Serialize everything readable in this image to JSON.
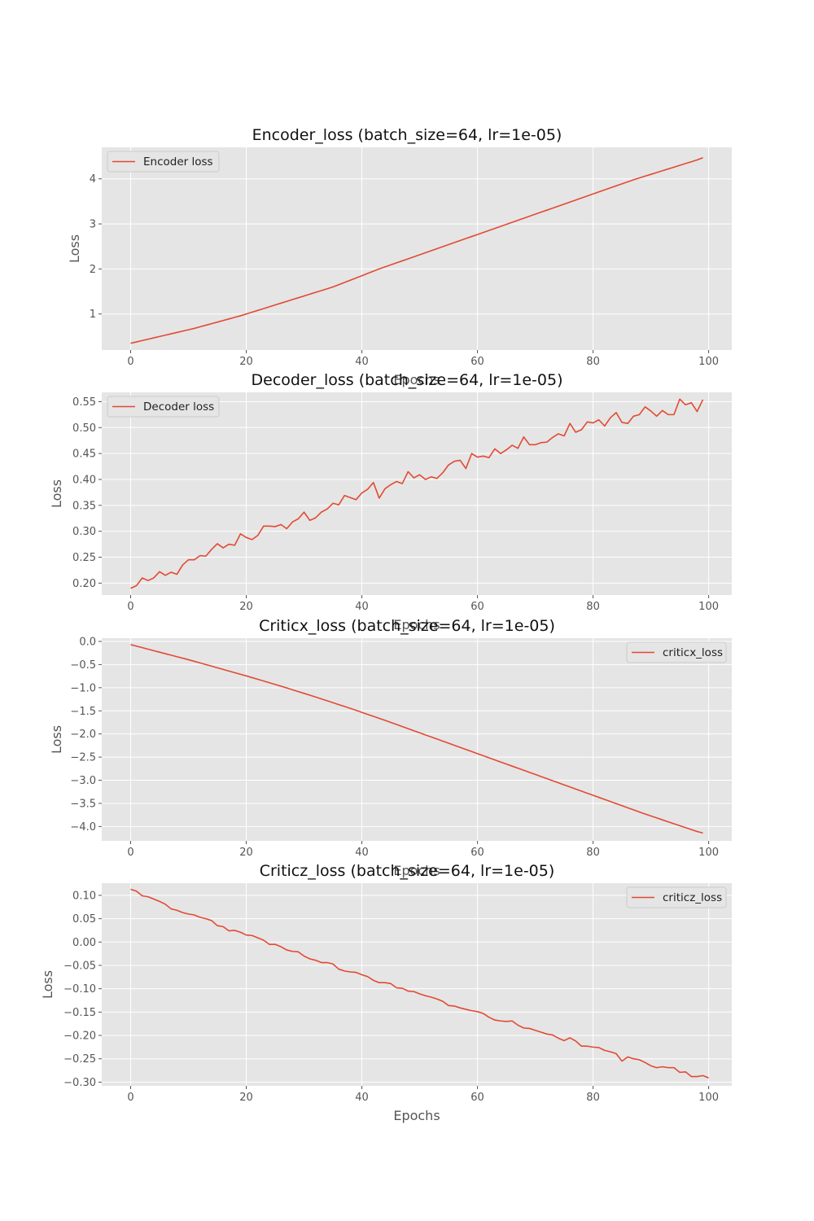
{
  "chart_data": [
    {
      "type": "line",
      "title": "Encoder_loss (batch_size=64, lr=1e-05)",
      "xlabel": "Epochs",
      "ylabel": "Loss",
      "xlim": [
        -5,
        104
      ],
      "ylim": [
        0.2,
        4.7
      ],
      "xticks": [
        0,
        20,
        40,
        60,
        80,
        100
      ],
      "yticks": [
        1,
        2,
        3,
        4
      ],
      "ytick_labels": [
        "1",
        "2",
        "3",
        "4"
      ],
      "grid": true,
      "legend_position": "upper left",
      "series": [
        {
          "name": "Encoder loss",
          "color": "#E24A33",
          "x_start": 0,
          "values": [
            0.35,
            0.38,
            0.41,
            0.44,
            0.47,
            0.5,
            0.53,
            0.56,
            0.59,
            0.62,
            0.65,
            0.68,
            0.715,
            0.75,
            0.785,
            0.82,
            0.855,
            0.89,
            0.925,
            0.96,
            1.0,
            1.04,
            1.08,
            1.12,
            1.16,
            1.2,
            1.24,
            1.28,
            1.32,
            1.36,
            1.4,
            1.44,
            1.48,
            1.52,
            1.56,
            1.6,
            1.65,
            1.7,
            1.75,
            1.8,
            1.85,
            1.9,
            1.95,
            2.0,
            2.045,
            2.09,
            2.135,
            2.18,
            2.225,
            2.27,
            2.315,
            2.36,
            2.405,
            2.45,
            2.495,
            2.54,
            2.585,
            2.63,
            2.675,
            2.72,
            2.765,
            2.81,
            2.855,
            2.9,
            2.945,
            2.99,
            3.035,
            3.08,
            3.125,
            3.17,
            3.215,
            3.26,
            3.305,
            3.35,
            3.395,
            3.44,
            3.485,
            3.53,
            3.575,
            3.62,
            3.665,
            3.71,
            3.755,
            3.8,
            3.845,
            3.89,
            3.935,
            3.98,
            4.02,
            4.06,
            4.1,
            4.14,
            4.18,
            4.22,
            4.26,
            4.3,
            4.34,
            4.38,
            4.42,
            4.47
          ]
        }
      ]
    },
    {
      "type": "line",
      "title": "Decoder_loss (batch_size=64, lr=1e-05)",
      "xlabel": "Epochs",
      "ylabel": "Loss",
      "xlim": [
        -5,
        104
      ],
      "ylim": [
        0.177,
        0.568
      ],
      "xticks": [
        0,
        20,
        40,
        60,
        80,
        100
      ],
      "yticks": [
        0.2,
        0.25,
        0.3,
        0.35,
        0.4,
        0.45,
        0.5,
        0.55
      ],
      "ytick_labels": [
        "0.20",
        "0.25",
        "0.30",
        "0.35",
        "0.40",
        "0.45",
        "0.50",
        "0.55"
      ],
      "grid": true,
      "legend_position": "upper left",
      "series": [
        {
          "name": "Decoder loss",
          "color": "#E24A33",
          "x_start": 0,
          "values": [
            0.19,
            0.195,
            0.21,
            0.205,
            0.21,
            0.222,
            0.215,
            0.221,
            0.217,
            0.235,
            0.245,
            0.245,
            0.253,
            0.252,
            0.265,
            0.276,
            0.268,
            0.275,
            0.273,
            0.295,
            0.288,
            0.284,
            0.292,
            0.31,
            0.31,
            0.309,
            0.313,
            0.305,
            0.318,
            0.324,
            0.337,
            0.321,
            0.326,
            0.337,
            0.343,
            0.354,
            0.351,
            0.369,
            0.365,
            0.361,
            0.374,
            0.381,
            0.394,
            0.364,
            0.382,
            0.39,
            0.396,
            0.392,
            0.415,
            0.403,
            0.409,
            0.4,
            0.405,
            0.402,
            0.413,
            0.428,
            0.435,
            0.437,
            0.421,
            0.45,
            0.443,
            0.445,
            0.442,
            0.459,
            0.45,
            0.457,
            0.466,
            0.46,
            0.482,
            0.467,
            0.467,
            0.471,
            0.472,
            0.481,
            0.488,
            0.484,
            0.508,
            0.491,
            0.496,
            0.511,
            0.509,
            0.515,
            0.503,
            0.519,
            0.529,
            0.51,
            0.508,
            0.522,
            0.525,
            0.54,
            0.532,
            0.522,
            0.533,
            0.525,
            0.525,
            0.555,
            0.544,
            0.548,
            0.531,
            0.554
          ]
        }
      ]
    },
    {
      "type": "line",
      "title": "Criticx_loss (batch_size=64, lr=1e-05)",
      "xlabel": "Epochs",
      "ylabel": "Loss",
      "xlim": [
        -5,
        104
      ],
      "ylim": [
        -4.31,
        0.07
      ],
      "xticks": [
        0,
        20,
        40,
        60,
        80,
        100
      ],
      "yticks": [
        0,
        -0.5,
        -1,
        -1.5,
        -2,
        -2.5,
        -3,
        -3.5,
        -4
      ],
      "ytick_labels": [
        "0.0",
        "−0.5",
        "−1.0",
        "−1.5",
        "−2.0",
        "−2.5",
        "−3.0",
        "−3.5",
        "−4.0"
      ],
      "grid": true,
      "legend_position": "upper right",
      "series": [
        {
          "name": "criticx_loss",
          "color": "#E24A33",
          "x_start": 0,
          "values": [
            -0.07,
            -0.102,
            -0.135,
            -0.167,
            -0.2,
            -0.232,
            -0.265,
            -0.297,
            -0.33,
            -0.362,
            -0.395,
            -0.43,
            -0.465,
            -0.5,
            -0.535,
            -0.57,
            -0.605,
            -0.64,
            -0.675,
            -0.71,
            -0.745,
            -0.782,
            -0.819,
            -0.856,
            -0.893,
            -0.93,
            -0.967,
            -1.006,
            -1.045,
            -1.084,
            -1.123,
            -1.162,
            -1.201,
            -1.242,
            -1.283,
            -1.324,
            -1.365,
            -1.406,
            -1.447,
            -1.49,
            -1.533,
            -1.576,
            -1.619,
            -1.662,
            -1.705,
            -1.75,
            -1.795,
            -1.84,
            -1.885,
            -1.93,
            -1.975,
            -2.02,
            -2.065,
            -2.11,
            -2.155,
            -2.2,
            -2.245,
            -2.29,
            -2.335,
            -2.38,
            -2.425,
            -2.47,
            -2.515,
            -2.56,
            -2.605,
            -2.65,
            -2.695,
            -2.74,
            -2.785,
            -2.83,
            -2.875,
            -2.92,
            -2.965,
            -3.01,
            -3.055,
            -3.1,
            -3.145,
            -3.19,
            -3.235,
            -3.28,
            -3.325,
            -3.37,
            -3.415,
            -3.46,
            -3.505,
            -3.55,
            -3.595,
            -3.64,
            -3.685,
            -3.73,
            -3.772,
            -3.814,
            -3.856,
            -3.898,
            -3.94,
            -3.982,
            -4.024,
            -4.066,
            -4.108,
            -4.14
          ]
        }
      ]
    },
    {
      "type": "line",
      "title": "Criticz_loss (batch_size=64, lr=1e-05)",
      "xlabel": "Epochs",
      "ylabel": "Loss",
      "xlim": [
        -5,
        104
      ],
      "ylim": [
        -0.308,
        0.126
      ],
      "xticks": [
        0,
        20,
        40,
        60,
        80,
        100
      ],
      "yticks": [
        0.1,
        0.05,
        0,
        -0.05,
        -0.1,
        -0.15,
        -0.2,
        -0.25,
        -0.3
      ],
      "ytick_labels": [
        "0.10",
        "0.05",
        "0.00",
        "−0.05",
        "−0.10",
        "−0.15",
        "−0.20",
        "−0.25",
        "−0.30"
      ],
      "grid": true,
      "legend_position": "upper right",
      "series": [
        {
          "name": "criticz_loss",
          "color": "#E24A33",
          "x_start": 0,
          "values": [
            0.113,
            0.109,
            0.099,
            0.097,
            0.092,
            0.087,
            0.081,
            0.071,
            0.068,
            0.063,
            0.06,
            0.058,
            0.053,
            0.05,
            0.046,
            0.035,
            0.033,
            0.024,
            0.025,
            0.021,
            0.015,
            0.014,
            0.009,
            0.004,
            -0.005,
            -0.005,
            -0.01,
            -0.017,
            -0.02,
            -0.021,
            -0.03,
            -0.036,
            -0.039,
            -0.044,
            -0.044,
            -0.047,
            -0.058,
            -0.062,
            -0.064,
            -0.065,
            -0.07,
            -0.074,
            -0.082,
            -0.087,
            -0.087,
            -0.089,
            -0.098,
            -0.099,
            -0.105,
            -0.106,
            -0.111,
            -0.115,
            -0.118,
            -0.122,
            -0.127,
            -0.136,
            -0.137,
            -0.141,
            -0.144,
            -0.147,
            -0.149,
            -0.153,
            -0.161,
            -0.167,
            -0.169,
            -0.17,
            -0.169,
            -0.178,
            -0.184,
            -0.185,
            -0.189,
            -0.193,
            -0.197,
            -0.199,
            -0.206,
            -0.211,
            -0.205,
            -0.212,
            -0.223,
            -0.223,
            -0.225,
            -0.226,
            -0.232,
            -0.235,
            -0.239,
            -0.255,
            -0.246,
            -0.25,
            -0.252,
            -0.258,
            -0.265,
            -0.269,
            -0.267,
            -0.269,
            -0.269,
            -0.279,
            -0.278,
            -0.288,
            -0.288,
            -0.286,
            -0.291
          ]
        }
      ]
    }
  ]
}
